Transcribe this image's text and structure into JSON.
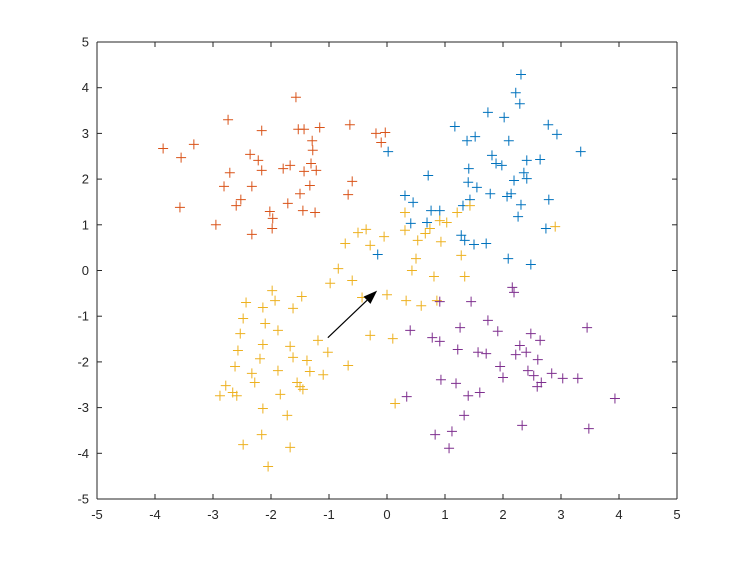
{
  "chart_data": {
    "type": "scatter",
    "marker": "+",
    "xlim": [
      -5,
      5
    ],
    "ylim": [
      -5,
      5
    ],
    "xticks": [
      -5,
      -4,
      -3,
      -2,
      -1,
      0,
      1,
      2,
      3,
      4,
      5
    ],
    "yticks": [
      -5,
      -4,
      -3,
      -2,
      -1,
      0,
      1,
      2,
      3,
      4,
      5
    ],
    "grid": false,
    "box": true,
    "series": [
      {
        "color": "#D95319",
        "x": [
          -3.86,
          -3.55,
          -3.33,
          -3.57,
          -2.95,
          -2.74,
          -2.71,
          -2.81,
          -2.6,
          -2.52,
          -2.16,
          -2.36,
          -2.22,
          -2.16,
          -2.33,
          -2.33,
          -2.02,
          -1.97,
          -1.98,
          -1.79,
          -1.67,
          -1.71,
          -1.57,
          -1.53,
          -1.43,
          -1.5,
          -1.43,
          -1.45,
          -1.29,
          -1.28,
          -1.31,
          -1.22,
          -1.16,
          -1.24,
          -0.64,
          -0.6,
          -0.67,
          -0.19,
          -0.03,
          -0.1,
          -1.33
        ],
        "values": [
          2.67,
          2.47,
          2.76,
          1.38,
          1.0,
          3.3,
          2.14,
          1.84,
          1.42,
          1.55,
          3.06,
          2.54,
          2.41,
          2.19,
          1.84,
          0.79,
          1.29,
          1.14,
          0.92,
          2.23,
          2.3,
          1.47,
          3.79,
          3.09,
          3.09,
          1.68,
          2.17,
          1.31,
          2.84,
          2.63,
          2.34,
          2.19,
          3.13,
          1.27,
          3.19,
          1.95,
          1.66,
          3.0,
          3.02,
          2.8,
          1.86
        ]
      },
      {
        "color": "#0072BD",
        "x": [
          0.02,
          -0.16,
          0.31,
          0.45,
          0.71,
          0.76,
          0.69,
          0.91,
          1.17,
          1.38,
          1.52,
          1.41,
          1.4,
          1.55,
          1.31,
          1.43,
          1.28,
          1.34,
          1.71,
          1.5,
          1.74,
          2.02,
          2.1,
          1.81,
          1.88,
          1.78,
          1.98,
          2.07,
          2.14,
          2.09,
          2.31,
          2.22,
          2.29,
          2.41,
          2.36,
          2.41,
          2.19,
          2.31,
          2.26,
          2.64,
          2.48,
          2.78,
          2.93,
          2.79,
          2.74,
          3.34,
          0.41
        ],
        "values": [
          2.6,
          0.35,
          1.64,
          1.49,
          2.08,
          1.31,
          1.05,
          1.31,
          3.15,
          2.84,
          2.93,
          2.23,
          1.93,
          1.82,
          1.42,
          1.55,
          0.77,
          0.66,
          0.59,
          0.57,
          3.46,
          3.35,
          2.84,
          2.52,
          2.34,
          1.68,
          2.3,
          1.62,
          1.68,
          0.26,
          4.29,
          3.89,
          3.65,
          2.41,
          2.14,
          2.01,
          1.97,
          1.44,
          1.18,
          2.43,
          0.13,
          3.19,
          2.98,
          1.55,
          0.92,
          2.6,
          1.03
        ]
      },
      {
        "color": "#EDB120",
        "x": [
          -2.88,
          -2.78,
          -2.66,
          -2.62,
          -2.59,
          -2.57,
          -2.53,
          -2.48,
          -2.43,
          -2.48,
          -2.33,
          -2.28,
          -2.14,
          -2.16,
          -2.19,
          -2.14,
          -2.1,
          -2.14,
          -1.98,
          -1.93,
          -2.05,
          -1.88,
          -1.88,
          -1.84,
          -1.72,
          -1.67,
          -1.62,
          -1.67,
          -1.62,
          -1.55,
          -1.5,
          -1.45,
          -1.47,
          -1.38,
          -1.33,
          -1.19,
          -1.1,
          -1.02,
          -0.98,
          -0.84,
          -0.72,
          -0.67,
          -0.6,
          -0.5,
          -0.43,
          -0.36,
          -0.29,
          -0.29,
          -0.05,
          0.0,
          0.1,
          0.14,
          0.31,
          0.31,
          0.33,
          0.5,
          0.53,
          0.43,
          0.59,
          0.66,
          0.74,
          0.81,
          0.86,
          0.91,
          0.93,
          1.03,
          1.21,
          1.28,
          1.34,
          1.43,
          2.9
        ],
        "values": [
          -2.74,
          -2.52,
          -2.67,
          -2.1,
          -2.74,
          -1.75,
          -1.38,
          -1.05,
          -0.7,
          -3.81,
          -2.25,
          -2.45,
          -3.02,
          -3.59,
          -1.93,
          -1.62,
          -1.16,
          -0.81,
          -0.44,
          -0.66,
          -4.29,
          -1.31,
          -2.19,
          -2.71,
          -3.17,
          -3.87,
          -0.83,
          -1.66,
          -1.9,
          -2.45,
          -2.54,
          -2.6,
          -0.57,
          -1.97,
          -2.21,
          -1.53,
          -2.28,
          -1.79,
          -0.28,
          0.04,
          0.59,
          -2.08,
          -0.22,
          0.83,
          -0.59,
          0.9,
          -1.42,
          0.55,
          0.74,
          -0.53,
          -1.49,
          -2.91,
          1.27,
          0.88,
          -0.66,
          0.26,
          0.66,
          0.0,
          -0.77,
          0.81,
          0.92,
          -0.13,
          -0.66,
          1.09,
          0.63,
          1.05,
          1.27,
          0.33,
          -0.13,
          1.42,
          0.96
        ]
      },
      {
        "color": "#7E2F8E",
        "x": [
          0.34,
          0.4,
          0.78,
          0.83,
          0.91,
          0.91,
          0.93,
          1.12,
          1.07,
          1.22,
          1.19,
          1.26,
          1.33,
          1.4,
          1.45,
          1.57,
          1.6,
          1.71,
          1.74,
          1.91,
          1.95,
          2.0,
          2.16,
          2.19,
          2.22,
          2.29,
          2.33,
          2.4,
          2.43,
          2.48,
          2.53,
          2.6,
          2.64,
          2.59,
          2.66,
          2.84,
          3.03,
          3.29,
          3.45,
          3.48,
          3.93
        ],
        "values": [
          -2.76,
          -1.31,
          -1.47,
          -3.59,
          -1.55,
          -0.68,
          -2.39,
          -3.52,
          -3.89,
          -1.73,
          -2.47,
          -1.25,
          -3.17,
          -2.74,
          -0.68,
          -1.79,
          -2.67,
          -1.82,
          -1.09,
          -1.33,
          -2.1,
          -2.34,
          -0.37,
          -0.48,
          -1.84,
          -1.64,
          -3.39,
          -1.79,
          -2.19,
          -1.38,
          -2.3,
          -1.95,
          -1.53,
          -2.54,
          -2.45,
          -2.25,
          -2.36,
          -2.36,
          -1.25,
          -3.46,
          -2.8
        ]
      }
    ],
    "arrows": [
      {
        "x": [
          -1.02,
          -0.17
        ],
        "y": [
          -1.47,
          -0.44
        ],
        "color": "#000000"
      }
    ]
  }
}
